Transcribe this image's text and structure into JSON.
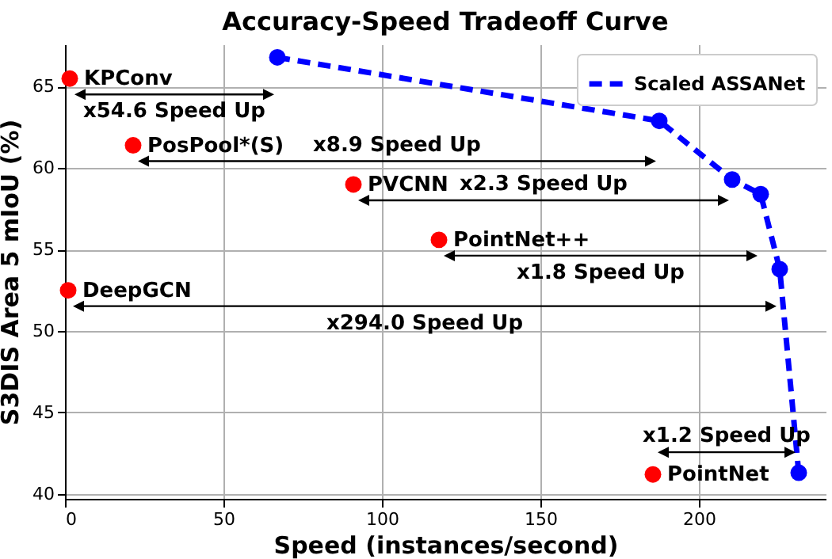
{
  "chart_data": {
    "type": "scatter",
    "title": "Accuracy-Speed Tradeoff Curve",
    "xlabel": "Speed (instances/second)",
    "ylabel": "S3DIS Area 5 mIoU (%)",
    "xlim": [
      0,
      240
    ],
    "xticks": [
      0,
      50,
      100,
      150,
      200
    ],
    "ylim": [
      39.7,
      67.6
    ],
    "yticks": [
      40,
      45,
      50,
      55,
      60,
      65
    ],
    "grid": true,
    "legend": "top right",
    "marker": "circle",
    "series": [
      {
        "color": "#ff0000",
        "x": [
          1.5,
          21.5,
          91,
          118,
          1,
          185.5
        ],
        "values": [
          65.5,
          61.4,
          59.0,
          55.6,
          52.5,
          41.2
        ]
      },
      {
        "type": "line",
        "name": "Scaled ASSANet",
        "color": "#0000ff",
        "line_style": "dashed",
        "x": [
          67,
          187.5,
          210.5,
          219.5,
          225.5,
          231.5
        ],
        "values": [
          66.8,
          62.9,
          59.3,
          58.4,
          53.8,
          41.3
        ]
      }
    ],
    "annotations": [
      {
        "text": "KPConv",
        "x": 1.5,
        "y": 65.5
      },
      {
        "text": "PosPool*(S)",
        "x": 21.5,
        "y": 61.4
      },
      {
        "text": "PVCNN",
        "x": 91,
        "y": 59.0
      },
      {
        "text": "PointNet++",
        "x": 118,
        "y": 55.6
      },
      {
        "text": "DeepGCN",
        "x": 1,
        "y": 52.5
      },
      {
        "text": "PointNet",
        "x": 185.5,
        "y": 41.2
      },
      "x54.6 Speed Up",
      "x8.9 Speed Up",
      "x2.3 Speed Up",
      "x1.8 Speed Up",
      "x294.0 Speed Up",
      "x1.2 Speed Up"
    ]
  }
}
